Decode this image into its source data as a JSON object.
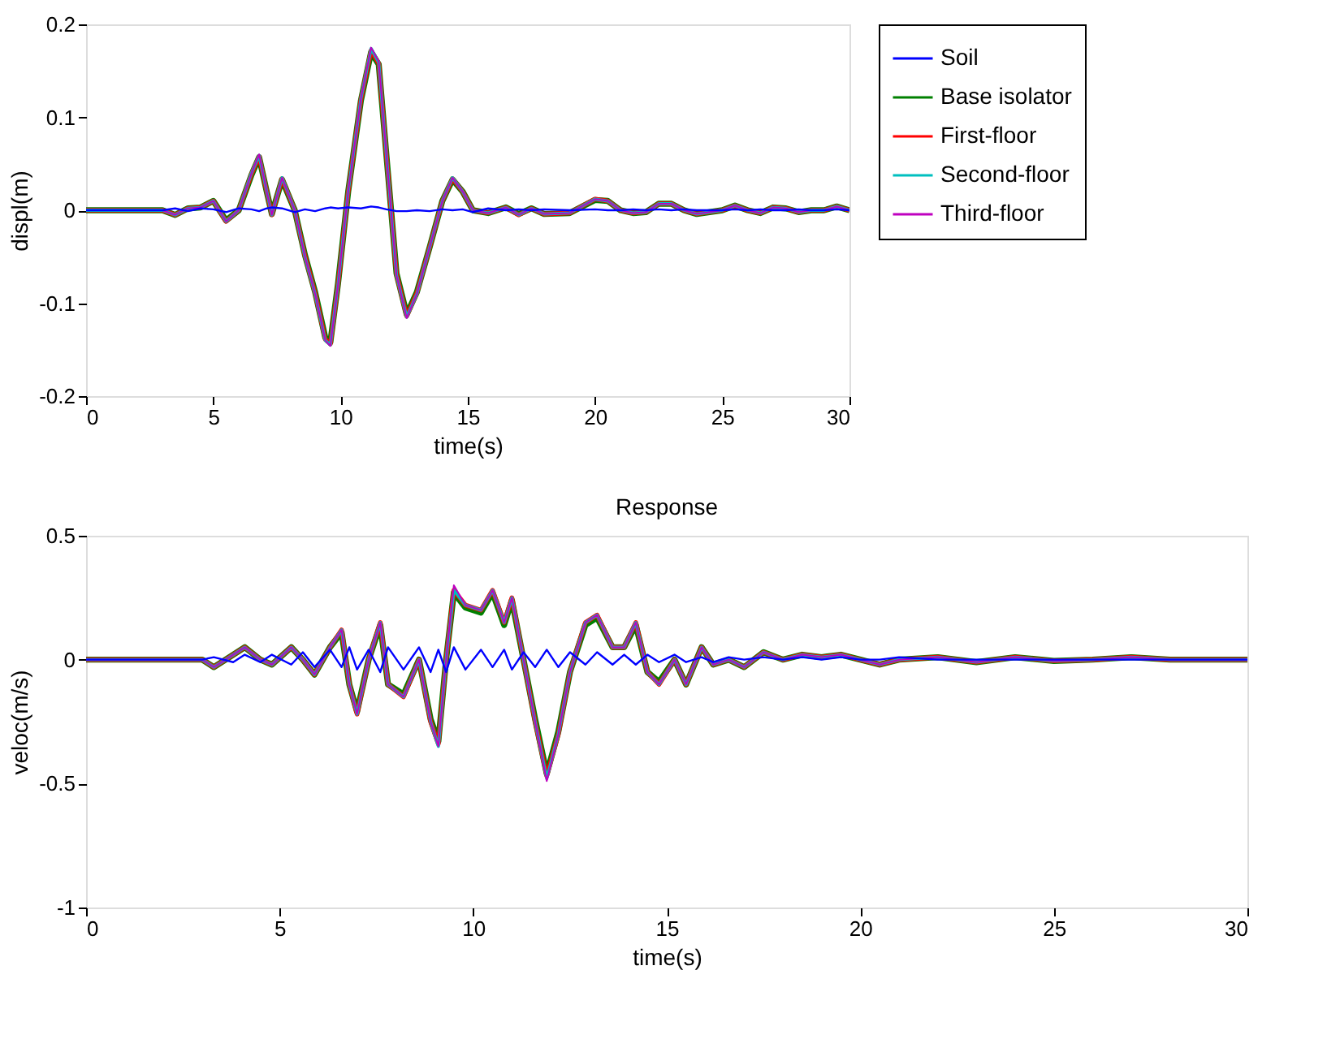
{
  "chart_data": [
    {
      "type": "line",
      "xlabel": "time(s)",
      "ylabel": "displ(m)",
      "xlim": [
        0,
        30
      ],
      "xticks": [
        0,
        5,
        10,
        15,
        20,
        25,
        30
      ],
      "ylim": [
        -0.2,
        0.2
      ],
      "yticks": [
        -0.2,
        -0.1,
        0,
        0.1,
        0.2
      ],
      "grid": false,
      "legend": "right",
      "marker": "none",
      "line_style": "solid",
      "x": [
        0,
        3,
        3.5,
        4,
        4.5,
        5,
        5.5,
        6,
        6.5,
        6.8,
        7.1,
        7.3,
        7.7,
        8.2,
        8.6,
        9,
        9.4,
        9.6,
        9.9,
        10.3,
        10.8,
        11.2,
        11.5,
        11.8,
        12.2,
        12.6,
        13,
        13.5,
        14,
        14.4,
        14.8,
        15.2,
        15.8,
        16.5,
        17,
        17.5,
        18,
        19,
        20,
        20.5,
        21,
        21.5,
        22,
        22.5,
        23,
        23.5,
        24,
        25,
        25.5,
        26,
        26.5,
        27,
        27.5,
        28,
        28.5,
        29,
        29.5,
        30
      ],
      "series": [
        {
          "name": "Soil",
          "color": "#0000ff",
          "values": [
            0,
            0,
            0.002,
            -0.001,
            0.002,
            0.001,
            -0.002,
            0.002,
            0.001,
            -0.001,
            0.002,
            0.003,
            0.002,
            -0.002,
            0.001,
            -0.001,
            0.002,
            0.003,
            0.002,
            0.003,
            0.002,
            0.004,
            0.003,
            0.001,
            -0.001,
            -0.001,
            0.0,
            -0.001,
            0.001,
            0.0,
            0.001,
            -0.002,
            0.002,
            0.0,
            0.001,
            0.0,
            0.001,
            0.0,
            0.001,
            0.0,
            0.0,
            0.001,
            0.0,
            0.001,
            0.0,
            0.001,
            0.0,
            0.0,
            0.001,
            0.0,
            0.001,
            0.0,
            0.0,
            0.001,
            0.0,
            0.0,
            0.001,
            0
          ]
        },
        {
          "name": "Base isolator",
          "color": "#008000",
          "values": [
            0,
            0,
            -0.005,
            0.002,
            0.003,
            0.01,
            -0.011,
            0.0,
            0.038,
            0.057,
            0.02,
            -0.004,
            0.033,
            0.0,
            -0.048,
            -0.088,
            -0.137,
            -0.142,
            -0.079,
            0.02,
            0.118,
            0.17,
            0.157,
            0.06,
            -0.068,
            -0.112,
            -0.088,
            -0.04,
            0.01,
            0.033,
            0.02,
            0.0,
            -0.003,
            0.003,
            -0.004,
            0.002,
            -0.004,
            -0.003,
            0.011,
            0.01,
            0.0,
            -0.003,
            -0.002,
            0.007,
            0.007,
            0.0,
            -0.004,
            0.0,
            0.005,
            0.0,
            -0.003,
            0.003,
            0.002,
            -0.002,
            0.0,
            0.0,
            0.004,
            0
          ]
        },
        {
          "name": "First-floor",
          "color": "#ff0000",
          "values": [
            0,
            0,
            -0.005,
            0.002,
            0.003,
            0.01,
            -0.012,
            0.0,
            0.039,
            0.058,
            0.02,
            -0.005,
            0.034,
            0.0,
            -0.049,
            -0.089,
            -0.139,
            -0.144,
            -0.08,
            0.02,
            0.119,
            0.172,
            0.158,
            0.06,
            -0.069,
            -0.114,
            -0.089,
            -0.04,
            0.01,
            0.034,
            0.02,
            0.0,
            -0.003,
            0.003,
            -0.005,
            0.002,
            -0.004,
            -0.003,
            0.012,
            0.01,
            0.0,
            -0.003,
            -0.002,
            0.007,
            0.007,
            0.0,
            -0.004,
            0.0,
            0.005,
            0.0,
            -0.003,
            0.003,
            0.002,
            -0.002,
            0.0,
            0.0,
            0.004,
            0
          ]
        },
        {
          "name": "Second-floor",
          "color": "#00bfbf",
          "values": [
            0,
            0,
            -0.005,
            0.002,
            0.003,
            0.01,
            -0.012,
            0.0,
            0.04,
            0.059,
            0.02,
            -0.005,
            0.035,
            0.0,
            -0.05,
            -0.09,
            -0.14,
            -0.145,
            -0.08,
            0.02,
            0.12,
            0.174,
            0.159,
            0.06,
            -0.07,
            -0.115,
            -0.09,
            -0.04,
            0.01,
            0.035,
            0.02,
            0.0,
            -0.003,
            0.003,
            -0.005,
            0.002,
            -0.004,
            -0.003,
            0.012,
            0.01,
            0.0,
            -0.003,
            -0.002,
            0.007,
            0.007,
            0.0,
            -0.004,
            0.0,
            0.005,
            0.0,
            -0.003,
            0.003,
            0.002,
            -0.002,
            0.0,
            0.0,
            0.004,
            0
          ]
        },
        {
          "name": "Third-floor",
          "color": "#bf00bf",
          "values": [
            0,
            0,
            -0.005,
            0.002,
            0.003,
            0.01,
            -0.012,
            0.0,
            0.04,
            0.06,
            0.02,
            -0.005,
            0.035,
            0.0,
            -0.05,
            -0.09,
            -0.14,
            -0.146,
            -0.08,
            0.02,
            0.12,
            0.175,
            0.16,
            0.06,
            -0.07,
            -0.116,
            -0.09,
            -0.04,
            0.01,
            0.035,
            0.02,
            0.0,
            -0.003,
            0.003,
            -0.005,
            0.002,
            -0.004,
            -0.003,
            0.012,
            0.01,
            0.0,
            -0.003,
            -0.002,
            0.007,
            0.007,
            0.0,
            -0.004,
            0.0,
            0.005,
            0.0,
            -0.003,
            0.003,
            0.002,
            -0.002,
            0.0,
            0.0,
            0.004,
            0
          ]
        }
      ]
    },
    {
      "type": "line",
      "title": "Response",
      "xlabel": "time(s)",
      "ylabel": "veloc(m/s)",
      "xlim": [
        0,
        30
      ],
      "xticks": [
        0,
        5,
        10,
        15,
        20,
        25,
        30
      ],
      "ylim": [
        -1,
        0.5
      ],
      "yticks": [
        -1,
        -0.5,
        0,
        0.5
      ],
      "grid": false,
      "legend": false,
      "marker": "none",
      "line_style": "solid",
      "x": [
        0,
        3,
        3.3,
        3.8,
        4.1,
        4.5,
        4.8,
        5.3,
        5.6,
        5.9,
        6.3,
        6.6,
        6.8,
        7,
        7.3,
        7.6,
        7.8,
        8.2,
        8.6,
        8.9,
        9.1,
        9.3,
        9.5,
        9.8,
        10.2,
        10.5,
        10.8,
        11,
        11.3,
        11.6,
        11.9,
        12.2,
        12.5,
        12.9,
        13.2,
        13.6,
        13.9,
        14.2,
        14.5,
        14.8,
        15.2,
        15.5,
        15.9,
        16.2,
        16.6,
        17,
        17.5,
        18,
        18.5,
        19,
        19.5,
        20,
        20.5,
        21,
        22,
        23,
        24,
        25,
        26,
        27,
        28,
        29,
        30
      ],
      "series": [
        {
          "color": "#0000ff",
          "values": [
            0,
            0,
            0.01,
            -0.01,
            0.02,
            -0.01,
            0.02,
            -0.02,
            0.03,
            -0.03,
            0.04,
            -0.03,
            0.05,
            -0.04,
            0.04,
            -0.05,
            0.05,
            -0.04,
            0.05,
            -0.05,
            0.04,
            -0.05,
            0.05,
            -0.04,
            0.04,
            -0.03,
            0.04,
            -0.04,
            0.03,
            -0.03,
            0.04,
            -0.03,
            0.03,
            -0.02,
            0.03,
            -0.02,
            0.02,
            -0.02,
            0.02,
            -0.01,
            0.02,
            -0.01,
            0.01,
            -0.01,
            0.01,
            0.0,
            0.01,
            0.0,
            0.01,
            0.0,
            0.01,
            0.0,
            0.0,
            0.01,
            0.0,
            0.0,
            0.0,
            0.0,
            0.0,
            0.0,
            0.0,
            0.0,
            0
          ]
        },
        {
          "color": "#008000",
          "values": [
            0,
            0,
            -0.03,
            0.02,
            0.05,
            0.0,
            -0.02,
            0.05,
            0.0,
            -0.06,
            0.05,
            0.11,
            -0.1,
            -0.21,
            0.0,
            0.14,
            -0.1,
            -0.14,
            0.0,
            -0.24,
            -0.33,
            0.0,
            0.27,
            0.21,
            0.19,
            0.27,
            0.14,
            0.24,
            0.0,
            -0.24,
            -0.46,
            -0.29,
            -0.05,
            0.14,
            0.17,
            0.05,
            0.05,
            0.14,
            -0.05,
            -0.09,
            0.0,
            -0.1,
            0.05,
            -0.02,
            0.0,
            -0.03,
            0.03,
            0.0,
            0.02,
            0.01,
            0.02,
            0.0,
            -0.02,
            0.0,
            0.01,
            -0.01,
            0.01,
            -0.005,
            0.0,
            0.01,
            0.0,
            0.0,
            0
          ]
        },
        {
          "color": "#ff0000",
          "values": [
            0,
            0,
            -0.03,
            0.02,
            0.05,
            0.0,
            -0.02,
            0.05,
            0.0,
            -0.06,
            0.05,
            0.12,
            -0.1,
            -0.22,
            0.0,
            0.15,
            -0.1,
            -0.15,
            0.0,
            -0.25,
            -0.34,
            0.0,
            0.28,
            0.22,
            0.2,
            0.28,
            0.15,
            0.25,
            0.0,
            -0.25,
            -0.47,
            -0.3,
            -0.05,
            0.15,
            0.18,
            0.05,
            0.05,
            0.15,
            -0.05,
            -0.1,
            0.0,
            -0.1,
            0.05,
            -0.02,
            0.0,
            -0.03,
            0.03,
            0.0,
            0.02,
            0.01,
            0.02,
            0.0,
            -0.02,
            0.0,
            0.01,
            -0.01,
            0.01,
            -0.005,
            0.0,
            0.01,
            0.0,
            0.0,
            0
          ]
        },
        {
          "color": "#00bfbf",
          "values": [
            0,
            0,
            -0.03,
            0.02,
            0.05,
            0.0,
            -0.02,
            0.05,
            0.0,
            -0.06,
            0.05,
            0.12,
            -0.1,
            -0.22,
            0.0,
            0.15,
            -0.1,
            -0.15,
            0.0,
            -0.25,
            -0.35,
            0.0,
            0.28,
            0.22,
            0.2,
            0.28,
            0.15,
            0.25,
            0.0,
            -0.25,
            -0.48,
            -0.3,
            -0.05,
            0.15,
            0.18,
            0.05,
            0.05,
            0.15,
            -0.05,
            -0.1,
            0.0,
            -0.1,
            0.05,
            -0.02,
            0.0,
            -0.03,
            0.03,
            0.0,
            0.02,
            0.01,
            0.02,
            0.0,
            -0.02,
            0.0,
            0.01,
            -0.01,
            0.01,
            -0.005,
            0.0,
            0.01,
            0.0,
            0.0,
            0
          ]
        },
        {
          "color": "#bf00bf",
          "values": [
            0,
            0,
            -0.03,
            0.02,
            0.05,
            0.0,
            -0.02,
            0.05,
            0.0,
            -0.06,
            0.05,
            0.12,
            -0.1,
            -0.22,
            0.0,
            0.15,
            -0.1,
            -0.15,
            0.0,
            -0.25,
            -0.35,
            0.0,
            0.3,
            0.22,
            0.2,
            0.28,
            0.15,
            0.25,
            0.0,
            -0.25,
            -0.49,
            -0.3,
            -0.05,
            0.15,
            0.18,
            0.05,
            0.05,
            0.15,
            -0.05,
            -0.1,
            0.0,
            -0.1,
            0.05,
            -0.02,
            0.0,
            -0.03,
            0.03,
            0.0,
            0.02,
            0.01,
            0.02,
            0.0,
            -0.02,
            0.0,
            0.01,
            -0.01,
            0.01,
            -0.005,
            0.0,
            0.01,
            0.0,
            0.0,
            0
          ]
        }
      ]
    }
  ]
}
